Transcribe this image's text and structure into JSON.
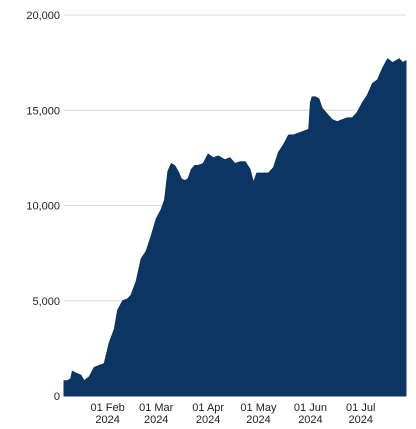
{
  "chart_data": {
    "type": "area",
    "title": "",
    "xlabel": "",
    "ylabel": "",
    "x_range": [
      "2024-01-06",
      "2024-07-28"
    ],
    "ylim": [
      0,
      20000
    ],
    "grid": {
      "y": true,
      "x": false
    },
    "legend": "none",
    "colors": {
      "area_fill": "#0b3563",
      "grid": "#d9d9d9",
      "text": "#222222"
    },
    "y_ticks": [
      {
        "value": 0,
        "label": "0"
      },
      {
        "value": 5000,
        "label": "5,000"
      },
      {
        "value": 10000,
        "label": "10,000"
      },
      {
        "value": 15000,
        "label": "15,000"
      },
      {
        "value": 20000,
        "label": "20,000"
      }
    ],
    "x_ticks": [
      {
        "date": "2024-02-01",
        "label": "01 Feb",
        "sublabel": "2024"
      },
      {
        "date": "2024-03-01",
        "label": "01 Mar",
        "sublabel": "2024"
      },
      {
        "date": "2024-04-01",
        "label": "01 Apr",
        "sublabel": "2024"
      },
      {
        "date": "2024-05-01",
        "label": "01 May",
        "sublabel": "2024"
      },
      {
        "date": "2024-06-01",
        "label": "01 Jun",
        "sublabel": "2024"
      },
      {
        "date": "2024-07-01",
        "label": "01 Jul",
        "sublabel": "2024"
      }
    ],
    "series": [
      {
        "x": [
          "2024-01-06",
          "2024-01-08",
          "2024-01-10",
          "2024-01-11",
          "2024-01-13",
          "2024-01-16",
          "2024-01-18",
          "2024-01-21",
          "2024-01-24",
          "2024-01-27",
          "2024-01-30",
          "2024-02-02",
          "2024-02-05",
          "2024-02-07",
          "2024-02-10",
          "2024-02-13",
          "2024-02-15",
          "2024-02-18",
          "2024-02-21",
          "2024-02-24",
          "2024-02-27",
          "2024-03-01",
          "2024-03-04",
          "2024-03-06",
          "2024-03-08",
          "2024-03-10",
          "2024-03-12",
          "2024-03-14",
          "2024-03-16",
          "2024-03-18",
          "2024-03-20",
          "2024-03-22",
          "2024-03-24",
          "2024-03-26",
          "2024-03-29",
          "2024-04-01",
          "2024-04-04",
          "2024-04-07",
          "2024-04-09",
          "2024-04-11",
          "2024-04-14",
          "2024-04-17",
          "2024-04-20",
          "2024-04-23",
          "2024-04-26",
          "2024-04-28",
          "2024-04-30",
          "2024-05-02",
          "2024-05-04",
          "2024-05-07",
          "2024-05-10",
          "2024-05-13",
          "2024-05-16",
          "2024-05-19",
          "2024-05-22",
          "2024-05-25",
          "2024-05-28",
          "2024-05-31",
          "2024-06-01",
          "2024-06-02",
          "2024-06-04",
          "2024-06-06",
          "2024-06-08",
          "2024-06-11",
          "2024-06-14",
          "2024-06-17",
          "2024-06-20",
          "2024-06-23",
          "2024-06-26",
          "2024-06-29",
          "2024-07-02",
          "2024-07-05",
          "2024-07-08",
          "2024-07-11",
          "2024-07-14",
          "2024-07-17",
          "2024-07-20",
          "2024-07-22",
          "2024-07-24",
          "2024-07-26",
          "2024-07-28"
        ],
        "y": [
          800,
          800,
          900,
          1300,
          1200,
          1100,
          800,
          1000,
          1500,
          1600,
          1700,
          2800,
          3500,
          4500,
          5000,
          5100,
          5300,
          6000,
          7200,
          7600,
          8400,
          9300,
          9800,
          10300,
          11800,
          12200,
          12100,
          11800,
          11400,
          11300,
          11400,
          11900,
          12100,
          12100,
          12200,
          12700,
          12500,
          12600,
          12500,
          12400,
          12500,
          12200,
          12300,
          12300,
          11900,
          11200,
          11700,
          11700,
          11700,
          11700,
          12000,
          12800,
          13200,
          13700,
          13700,
          13800,
          13900,
          14000,
          15400,
          15700,
          15700,
          15600,
          15100,
          14800,
          14500,
          14400,
          14500,
          14600,
          14600,
          14900,
          15400,
          15800,
          16400,
          16600,
          17200,
          17700,
          17500,
          17600,
          17700,
          17500,
          17600
        ]
      }
    ]
  }
}
